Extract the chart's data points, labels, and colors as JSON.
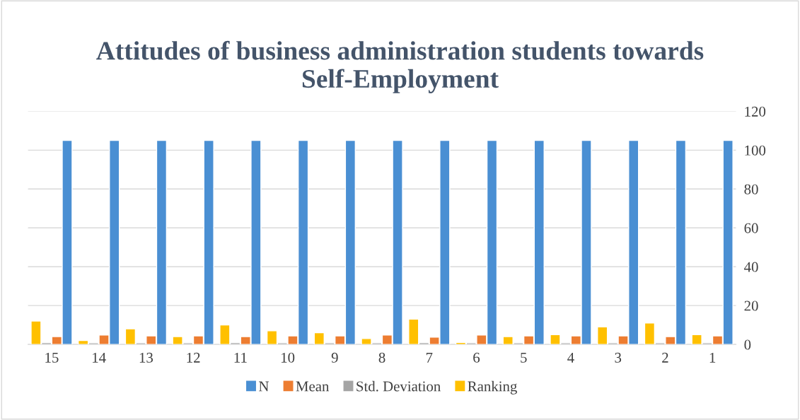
{
  "chart_data": {
    "type": "bar",
    "title": "Attitudes of business administration students towards Self-Employment",
    "categories": [
      "15",
      "14",
      "13",
      "12",
      "11",
      "10",
      "9",
      "8",
      "7",
      "6",
      "5",
      "4",
      "3",
      "2",
      "1"
    ],
    "series": [
      {
        "name": "N",
        "color": "#4a8fd3",
        "values": [
          105,
          105,
          105,
          105,
          105,
          105,
          105,
          105,
          105,
          105,
          105,
          105,
          105,
          105,
          105
        ]
      },
      {
        "name": "Mean",
        "color": "#ed7d31",
        "values": [
          4.0,
          4.8,
          4.4,
          4.4,
          4.0,
          4.4,
          4.4,
          4.8,
          3.7,
          4.8,
          4.4,
          4.4,
          4.4,
          4.0,
          4.4
        ]
      },
      {
        "name": "Std. Deviation",
        "color": "#a5a5a5",
        "values": [
          0.9,
          0.8,
          0.8,
          0.8,
          0.9,
          0.8,
          0.8,
          0.8,
          0.9,
          0.8,
          0.8,
          0.8,
          0.8,
          0.8,
          0.8
        ]
      },
      {
        "name": "Ranking",
        "color": "#ffc000",
        "values": [
          12,
          2,
          8,
          4,
          10,
          7,
          6,
          3,
          13,
          1,
          4,
          5,
          9,
          11,
          5
        ]
      }
    ],
    "ylim": [
      0,
      120
    ],
    "yticks": [
      0,
      20,
      40,
      60,
      80,
      100,
      120
    ],
    "grid": "y",
    "legend": "bottom"
  }
}
